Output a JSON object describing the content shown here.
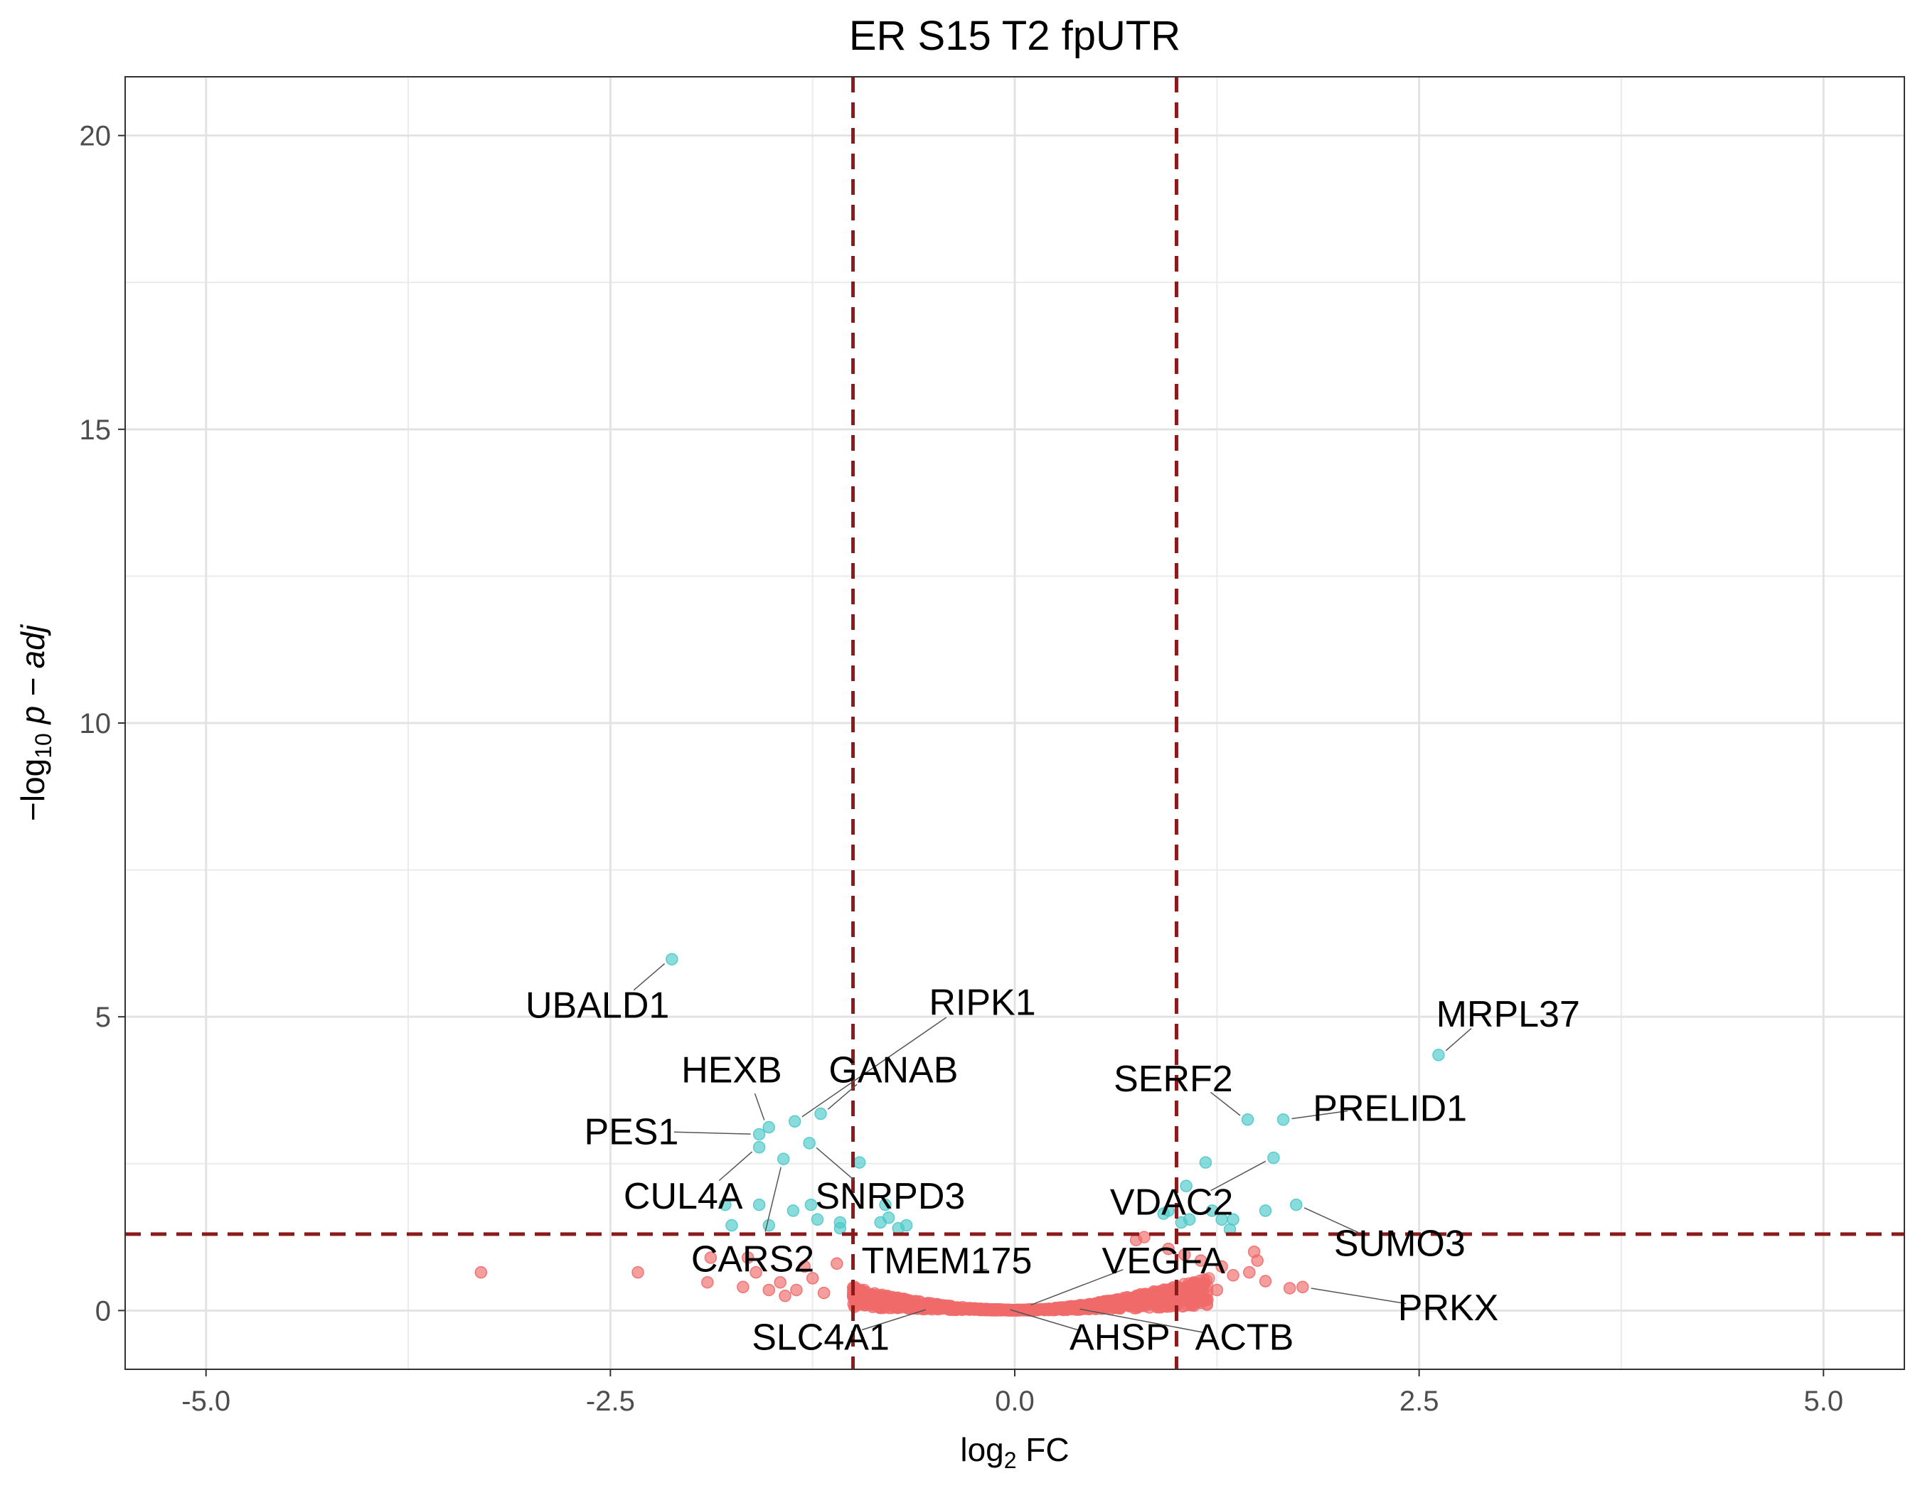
{
  "chart_data": {
    "type": "scatter",
    "title": "ER S15 T2 fpUTR",
    "xlabel": "log2 FC",
    "ylabel": "-log10 p-adj",
    "xlim": [
      -5.5,
      5.5
    ],
    "ylim": [
      -1,
      21
    ],
    "x_ticks": [
      -5.0,
      -2.5,
      0.0,
      2.5,
      5.0
    ],
    "x_tick_labels": [
      "-5.0",
      "-2.5",
      "0.0",
      "2.5",
      "5.0"
    ],
    "y_ticks": [
      0,
      5,
      10,
      15,
      20
    ],
    "y_tick_labels": [
      "0",
      "5",
      "10",
      "15",
      "20"
    ],
    "grid": true,
    "legend": "none",
    "thresholds": {
      "x": [
        -1,
        1
      ],
      "y": 1.3,
      "color": "#8b1a1a"
    },
    "colors": {
      "significant": "#4cc9c9",
      "not_significant": "#f06a6a"
    },
    "series": [
      {
        "group": "significant",
        "points": [
          {
            "x": -2.12,
            "y": 5.98
          },
          {
            "x": 2.62,
            "y": 4.35
          },
          {
            "x": -1.52,
            "y": 3.12
          },
          {
            "x": -1.36,
            "y": 3.22
          },
          {
            "x": -1.2,
            "y": 3.35
          },
          {
            "x": -1.58,
            "y": 3.0
          },
          {
            "x": -1.58,
            "y": 2.78
          },
          {
            "x": -1.27,
            "y": 2.85
          },
          {
            "x": -1.43,
            "y": 2.58
          },
          {
            "x": -0.96,
            "y": 2.52
          },
          {
            "x": -1.79,
            "y": 1.8
          },
          {
            "x": -1.58,
            "y": 1.8
          },
          {
            "x": -1.37,
            "y": 1.7
          },
          {
            "x": -1.26,
            "y": 1.8
          },
          {
            "x": -1.75,
            "y": 1.45
          },
          {
            "x": -1.52,
            "y": 1.45
          },
          {
            "x": -1.22,
            "y": 1.55
          },
          {
            "x": -1.08,
            "y": 1.5
          },
          {
            "x": -1.08,
            "y": 1.4
          },
          {
            "x": -0.83,
            "y": 1.5
          },
          {
            "x": -0.78,
            "y": 1.58
          },
          {
            "x": -0.8,
            "y": 1.8
          },
          {
            "x": -0.72,
            "y": 1.4
          },
          {
            "x": -0.67,
            "y": 1.45
          },
          {
            "x": 1.44,
            "y": 3.25
          },
          {
            "x": 1.66,
            "y": 3.25
          },
          {
            "x": 1.6,
            "y": 2.6
          },
          {
            "x": 1.18,
            "y": 2.52
          },
          {
            "x": 1.74,
            "y": 1.8
          },
          {
            "x": 1.55,
            "y": 1.7
          },
          {
            "x": 1.06,
            "y": 2.12
          },
          {
            "x": 0.95,
            "y": 1.7
          },
          {
            "x": 0.92,
            "y": 1.65
          },
          {
            "x": 1.03,
            "y": 1.5
          },
          {
            "x": 1.08,
            "y": 1.55
          },
          {
            "x": 1.28,
            "y": 1.55
          },
          {
            "x": 1.35,
            "y": 1.55
          },
          {
            "x": 1.33,
            "y": 1.38
          },
          {
            "x": 1.22,
            "y": 1.7
          }
        ]
      },
      {
        "group": "not_significant",
        "points": [
          {
            "x": -3.3,
            "y": 0.65
          },
          {
            "x": -2.33,
            "y": 0.65
          },
          {
            "x": -1.9,
            "y": 0.48
          },
          {
            "x": -1.88,
            "y": 0.9
          },
          {
            "x": -1.65,
            "y": 0.9
          },
          {
            "x": -1.6,
            "y": 0.65
          },
          {
            "x": -1.68,
            "y": 0.4
          },
          {
            "x": -1.45,
            "y": 0.48
          },
          {
            "x": -1.52,
            "y": 0.35
          },
          {
            "x": -1.42,
            "y": 0.25
          },
          {
            "x": -1.35,
            "y": 0.35
          },
          {
            "x": -1.3,
            "y": 0.75
          },
          {
            "x": -1.25,
            "y": 0.55
          },
          {
            "x": -1.18,
            "y": 0.3
          },
          {
            "x": -1.1,
            "y": 0.8
          },
          {
            "x": 0.8,
            "y": 1.25
          },
          {
            "x": 0.75,
            "y": 1.2
          },
          {
            "x": 0.95,
            "y": 1.05
          },
          {
            "x": 1.05,
            "y": 0.95
          },
          {
            "x": 1.15,
            "y": 0.85
          },
          {
            "x": 1.28,
            "y": 0.75
          },
          {
            "x": 1.35,
            "y": 0.6
          },
          {
            "x": 1.45,
            "y": 0.65
          },
          {
            "x": 1.5,
            "y": 0.85
          },
          {
            "x": 1.48,
            "y": 1.0
          },
          {
            "x": 1.55,
            "y": 0.5
          },
          {
            "x": 1.7,
            "y": 0.38
          },
          {
            "x": 1.78,
            "y": 0.4
          },
          {
            "x": 1.25,
            "y": 0.35
          },
          {
            "x": 1.12,
            "y": 0.4
          }
        ],
        "cloud": [
          {
            "x": -1.0,
            "y": 0.42
          },
          {
            "x": -0.8,
            "y": 0.27
          },
          {
            "x": -0.6,
            "y": 0.16
          },
          {
            "x": -0.4,
            "y": 0.08
          },
          {
            "x": -0.2,
            "y": 0.03
          },
          {
            "x": 0.0,
            "y": 0.01
          },
          {
            "x": 0.2,
            "y": 0.03
          },
          {
            "x": 0.4,
            "y": 0.09
          },
          {
            "x": 0.6,
            "y": 0.18
          },
          {
            "x": 0.8,
            "y": 0.29
          },
          {
            "x": 1.0,
            "y": 0.42
          },
          {
            "x": 1.2,
            "y": 0.55
          }
        ]
      }
    ],
    "annotations": [
      {
        "label": "UBALD1",
        "x": -2.12,
        "y": 5.98,
        "label_x": -2.58,
        "label_y": 5.2,
        "anchor": "middle"
      },
      {
        "label": "RIPK1",
        "x": -1.36,
        "y": 3.22,
        "label_x": -0.2,
        "label_y": 5.25,
        "anchor": "middle"
      },
      {
        "label": "HEXB",
        "x": -1.52,
        "y": 3.12,
        "label_x": -1.75,
        "label_y": 4.1,
        "anchor": "middle"
      },
      {
        "label": "GANAB",
        "x": -1.2,
        "y": 3.35,
        "label_x": -0.75,
        "label_y": 4.1,
        "anchor": "middle"
      },
      {
        "label": "PES1",
        "x": -1.58,
        "y": 3.0,
        "label_x": -2.37,
        "label_y": 3.05,
        "anchor": "middle"
      },
      {
        "label": "CUL4A",
        "x": -1.58,
        "y": 2.78,
        "label_x": -2.05,
        "label_y": 1.95,
        "anchor": "middle"
      },
      {
        "label": "SNRPD3",
        "x": -1.27,
        "y": 2.85,
        "label_x": -0.77,
        "label_y": 1.95,
        "anchor": "middle"
      },
      {
        "label": "CARS2",
        "x": -1.43,
        "y": 2.58,
        "label_x": -1.62,
        "label_y": 0.88,
        "anchor": "middle"
      },
      {
        "label": "TMEM175",
        "x": -0.2,
        "y": 0.65,
        "label_x": -0.42,
        "label_y": 0.85,
        "anchor": "middle"
      },
      {
        "label": "VEGFA",
        "x": 0.05,
        "y": 0.05,
        "label_x": 0.92,
        "label_y": 0.85,
        "anchor": "middle"
      },
      {
        "label": "SLC4A1",
        "x": -0.5,
        "y": 0.05,
        "label_x": -1.2,
        "label_y": -0.45,
        "anchor": "middle"
      },
      {
        "label": "AHSP",
        "x": -0.08,
        "y": 0.05,
        "label_x": 0.65,
        "label_y": -0.45,
        "anchor": "middle"
      },
      {
        "label": "ACTB",
        "x": 0.35,
        "y": 0.05,
        "label_x": 1.42,
        "label_y": -0.45,
        "anchor": "middle"
      },
      {
        "label": "SERF2",
        "x": 1.44,
        "y": 3.25,
        "label_x": 0.98,
        "label_y": 3.95,
        "anchor": "middle"
      },
      {
        "label": "PRELID1",
        "x": 1.66,
        "y": 3.25,
        "label_x": 2.32,
        "label_y": 3.45,
        "anchor": "middle"
      },
      {
        "label": "MRPL37",
        "x": 2.62,
        "y": 4.35,
        "label_x": 3.05,
        "label_y": 5.05,
        "anchor": "middle"
      },
      {
        "label": "VDAC2",
        "x": 1.6,
        "y": 2.6,
        "label_x": 0.97,
        "label_y": 1.85,
        "anchor": "middle"
      },
      {
        "label": "SUMO3",
        "x": 1.74,
        "y": 1.8,
        "label_x": 2.38,
        "label_y": 1.15,
        "anchor": "middle"
      },
      {
        "label": "PRKX",
        "x": 1.78,
        "y": 0.4,
        "label_x": 2.68,
        "label_y": 0.05,
        "anchor": "middle"
      }
    ]
  }
}
